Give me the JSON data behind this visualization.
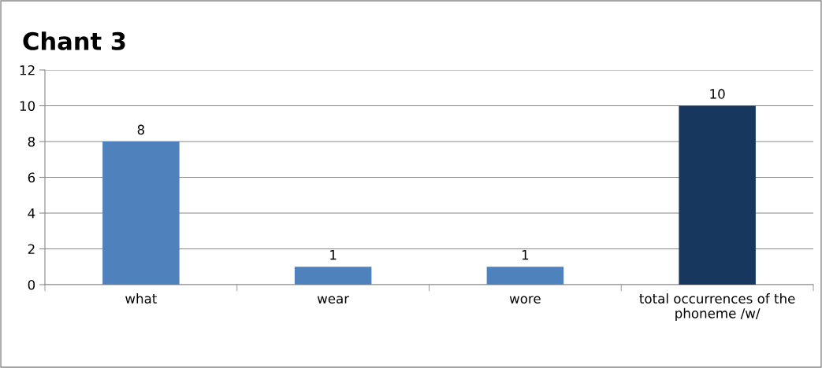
{
  "chart_data": {
    "type": "bar",
    "title": "Chant 3",
    "categories": [
      "what",
      "wear",
      "wore",
      "total occurrences of the phoneme /w/"
    ],
    "values": [
      8,
      1,
      1,
      10
    ],
    "colors": [
      "#4f81bd",
      "#4f81bd",
      "#4f81bd",
      "#17375e"
    ],
    "ylim": [
      0,
      12
    ],
    "yticks": [
      0,
      2,
      4,
      6,
      8,
      10,
      12
    ],
    "grid": "y",
    "data_labels": true,
    "legend": false
  }
}
